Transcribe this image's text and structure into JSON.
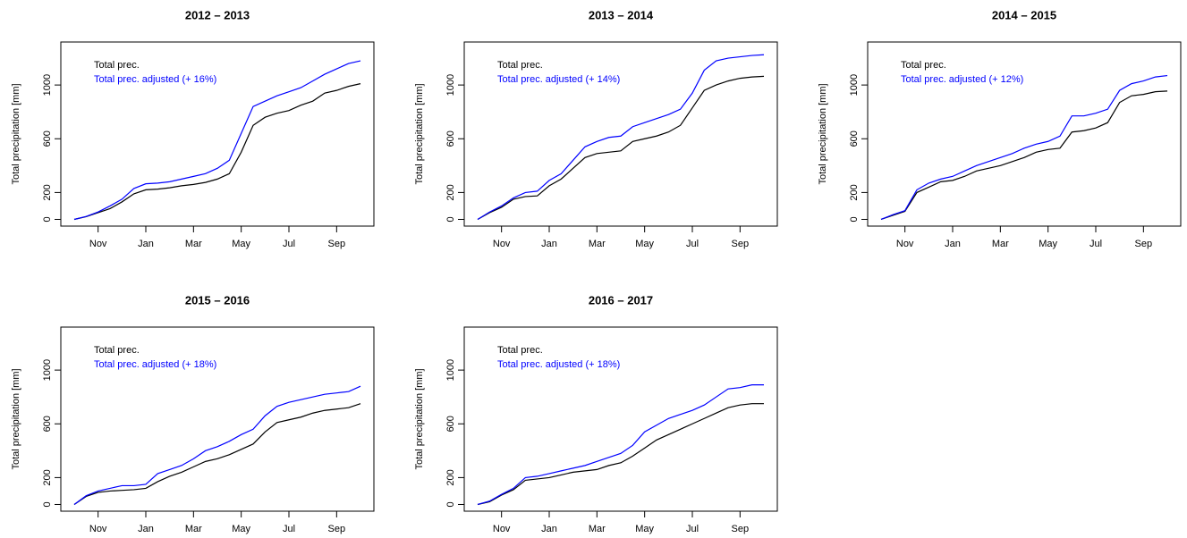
{
  "chart_data": [
    {
      "type": "line",
      "title": "2012 – 2013",
      "y_label": "Total precipitation [mm]",
      "categories": [
        null,
        null,
        "Nov",
        null,
        null,
        null,
        "Jan",
        null,
        null,
        null,
        "Mar",
        null,
        null,
        null,
        "May",
        null,
        null,
        null,
        "Jul",
        null,
        null,
        null,
        "Sep",
        null,
        null
      ],
      "series": [
        {
          "name": "Total prec.",
          "color": "#000000",
          "values": [
            0,
            20,
            50,
            80,
            130,
            190,
            220,
            225,
            235,
            250,
            260,
            275,
            300,
            340,
            500,
            700,
            760,
            790,
            810,
            850,
            880,
            940,
            960,
            990,
            1010
          ]
        },
        {
          "name": "Total prec. adjusted (+ 16%)",
          "color": "#0000ff",
          "values": [
            0,
            22,
            55,
            100,
            150,
            230,
            265,
            270,
            280,
            300,
            320,
            340,
            380,
            440,
            640,
            840,
            880,
            920,
            950,
            980,
            1030,
            1080,
            1120,
            1160,
            1180
          ]
        }
      ],
      "ylim": [
        -50,
        1320
      ],
      "yticks": [
        0,
        200,
        600,
        1000
      ]
    },
    {
      "type": "line",
      "title": "2013 – 2014",
      "y_label": "Total precipitation [mm]",
      "categories": [
        null,
        null,
        "Nov",
        null,
        null,
        null,
        "Jan",
        null,
        null,
        null,
        "Mar",
        null,
        null,
        null,
        "May",
        null,
        null,
        null,
        "Jul",
        null,
        null,
        null,
        "Sep",
        null,
        null
      ],
      "series": [
        {
          "name": "Total prec.",
          "color": "#000000",
          "values": [
            0,
            50,
            90,
            150,
            170,
            175,
            250,
            300,
            380,
            460,
            490,
            500,
            510,
            580,
            600,
            620,
            650,
            700,
            830,
            960,
            1000,
            1030,
            1050,
            1060,
            1065
          ]
        },
        {
          "name": "Total prec. adjusted (+ 14%)",
          "color": "#0000ff",
          "values": [
            0,
            55,
            100,
            160,
            200,
            210,
            290,
            340,
            440,
            540,
            580,
            610,
            620,
            690,
            720,
            750,
            780,
            820,
            940,
            1110,
            1180,
            1200,
            1210,
            1220,
            1225
          ]
        }
      ],
      "ylim": [
        -50,
        1320
      ],
      "yticks": [
        0,
        200,
        600,
        1000
      ]
    },
    {
      "type": "line",
      "title": "2014 – 2015",
      "y_label": "Total precipitation [mm]",
      "categories": [
        null,
        null,
        "Nov",
        null,
        null,
        null,
        "Jan",
        null,
        null,
        null,
        "Mar",
        null,
        null,
        null,
        "May",
        null,
        null,
        null,
        "Jul",
        null,
        null,
        null,
        "Sep",
        null,
        null
      ],
      "series": [
        {
          "name": "Total prec.",
          "color": "#000000",
          "values": [
            0,
            30,
            60,
            200,
            240,
            280,
            290,
            320,
            360,
            380,
            400,
            430,
            460,
            500,
            520,
            530,
            650,
            660,
            680,
            720,
            870,
            920,
            930,
            950,
            955
          ]
        },
        {
          "name": "Total prec. adjusted (+ 12%)",
          "color": "#0000ff",
          "values": [
            0,
            35,
            65,
            220,
            270,
            300,
            320,
            360,
            400,
            430,
            460,
            490,
            530,
            560,
            580,
            620,
            770,
            770,
            790,
            820,
            960,
            1010,
            1030,
            1060,
            1070
          ]
        }
      ],
      "ylim": [
        -50,
        1320
      ],
      "yticks": [
        0,
        200,
        600,
        1000
      ]
    },
    {
      "type": "line",
      "title": "2015 – 2016",
      "y_label": "Total precipitation [mm]",
      "categories": [
        null,
        null,
        "Nov",
        null,
        null,
        null,
        "Jan",
        null,
        null,
        null,
        "Mar",
        null,
        null,
        null,
        "May",
        null,
        null,
        null,
        "Jul",
        null,
        null,
        null,
        "Sep",
        null,
        null
      ],
      "series": [
        {
          "name": "Total prec.",
          "color": "#000000",
          "values": [
            0,
            60,
            90,
            100,
            105,
            110,
            120,
            170,
            210,
            240,
            280,
            320,
            340,
            370,
            410,
            450,
            540,
            610,
            630,
            650,
            680,
            700,
            710,
            720,
            750
          ]
        },
        {
          "name": "Total prec. adjusted (+ 18%)",
          "color": "#0000ff",
          "values": [
            0,
            65,
            100,
            120,
            140,
            140,
            150,
            230,
            260,
            290,
            340,
            400,
            430,
            470,
            520,
            560,
            660,
            730,
            760,
            780,
            800,
            820,
            830,
            840,
            880
          ]
        }
      ],
      "ylim": [
        -50,
        1320
      ],
      "yticks": [
        0,
        200,
        600,
        1000
      ]
    },
    {
      "type": "line",
      "title": "2016 – 2017",
      "y_label": "Total precipitation [mm]",
      "categories": [
        null,
        null,
        "Nov",
        null,
        null,
        null,
        "Jan",
        null,
        null,
        null,
        "Mar",
        null,
        null,
        null,
        "May",
        null,
        null,
        null,
        "Jul",
        null,
        null,
        null,
        "Sep",
        null,
        null
      ],
      "series": [
        {
          "name": "Total prec.",
          "color": "#000000",
          "values": [
            0,
            20,
            70,
            110,
            180,
            190,
            200,
            220,
            240,
            250,
            260,
            290,
            310,
            360,
            420,
            480,
            520,
            560,
            600,
            640,
            680,
            720,
            740,
            750,
            750
          ]
        },
        {
          "name": "Total prec. adjusted (+ 18%)",
          "color": "#0000ff",
          "values": [
            0,
            25,
            75,
            120,
            200,
            210,
            230,
            250,
            270,
            290,
            320,
            350,
            380,
            440,
            540,
            590,
            640,
            670,
            700,
            740,
            800,
            860,
            870,
            890,
            890
          ]
        }
      ],
      "ylim": [
        -50,
        1320
      ],
      "yticks": [
        0,
        200,
        600,
        1000
      ]
    }
  ]
}
